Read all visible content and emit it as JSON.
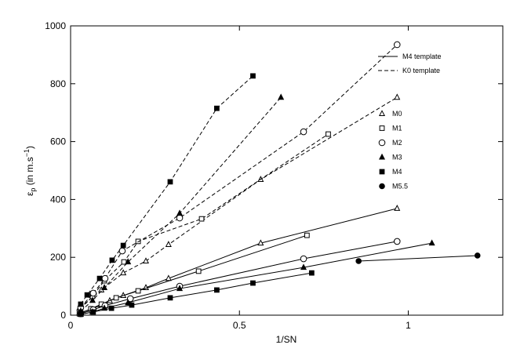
{
  "chart_data": {
    "type": "line",
    "x_label": "1/SN",
    "y_label": [
      "ε",
      "p",
      " (in m.s",
      "−1",
      ")"
    ],
    "xlim": [
      0,
      1.28
    ],
    "ylim": [
      0,
      1000
    ],
    "xticks": [
      0,
      0.5,
      1
    ],
    "yticks": [
      0,
      200,
      400,
      600,
      800,
      1000
    ],
    "color": "#000000",
    "templates": [
      {
        "name": "M4 template",
        "dashed": false
      },
      {
        "name": "K0 template",
        "dashed": true
      }
    ],
    "series": [
      {
        "name": "M0",
        "marker": "triangle",
        "filled": false,
        "lines": [
          {
            "template": 0,
            "x": [
              0.026,
              0.06,
              0.091,
              0.116,
              0.156,
              0.223,
              0.29,
              0.563,
              0.967
            ],
            "values": [
              8,
              20,
              35,
              50,
              68,
              95,
              127,
              249,
              369
            ]
          },
          {
            "template": 1,
            "x": [
              0.026,
              0.091,
              0.156,
              0.223,
              0.29,
              0.563,
              0.967
            ],
            "values": [
              24,
              87,
              146,
              187,
              244,
              469,
              753
            ]
          }
        ]
      },
      {
        "name": "M1",
        "marker": "square",
        "filled": false,
        "lines": [
          {
            "template": 0,
            "x": [
              0.026,
              0.06,
              0.091,
              0.135,
              0.2,
              0.379,
              0.7
            ],
            "values": [
              5,
              22,
              38,
              60,
              84,
              152,
              276
            ]
          },
          {
            "template": 1,
            "x": [
              0.03,
              0.065,
              0.1,
              0.158,
              0.2,
              0.388,
              0.763
            ],
            "values": [
              22,
              65,
              119,
              184,
              255,
              333,
              626
            ]
          }
        ]
      },
      {
        "name": "M2",
        "marker": "circle",
        "filled": false,
        "lines": [
          {
            "template": 0,
            "x": [
              0.03,
              0.067,
              0.102,
              0.177,
              0.323,
              0.69,
              0.967
            ],
            "values": [
              5,
              19,
              33,
              57,
              100,
              195,
              255
            ]
          },
          {
            "template": 1,
            "x": [
              0.03,
              0.067,
              0.102,
              0.153,
              0.323,
              0.69,
              0.967
            ],
            "values": [
              27,
              76,
              127,
              222,
              336,
              634,
              935
            ]
          }
        ]
      },
      {
        "name": "M3",
        "marker": "triangle",
        "filled": true,
        "lines": [
          {
            "template": 0,
            "x": [
              0.03,
              0.065,
              0.1,
              0.17,
              0.323,
              0.69,
              1.07
            ],
            "values": [
              3,
              11,
              24,
              43,
              92,
              165,
              249
            ]
          },
          {
            "template": 1,
            "x": [
              0.03,
              0.065,
              0.1,
              0.17,
              0.323,
              0.623
            ],
            "values": [
              14,
              51,
              95,
              184,
              352,
              753
            ]
          }
        ]
      },
      {
        "name": "M4",
        "marker": "square",
        "filled": true,
        "lines": [
          {
            "template": 0,
            "x": [
              0.03,
              0.067,
              0.121,
              0.181,
              0.295,
              0.433,
              0.54,
              0.714
            ],
            "values": [
              3,
              11,
              24,
              35,
              60,
              87,
              111,
              146
            ]
          },
          {
            "template": 1,
            "x": [
              0.03,
              0.049,
              0.086,
              0.123,
              0.156,
              0.295,
              0.433,
              0.54
            ],
            "values": [
              38,
              70,
              127,
              190,
              241,
              461,
              715,
              827
            ]
          }
        ]
      },
      {
        "name": "M5.5",
        "marker": "circle",
        "filled": true,
        "lines": [
          {
            "template": 0,
            "x": [
              0.853,
              1.205
            ],
            "values": [
              187,
              206
            ]
          }
        ]
      }
    ]
  }
}
